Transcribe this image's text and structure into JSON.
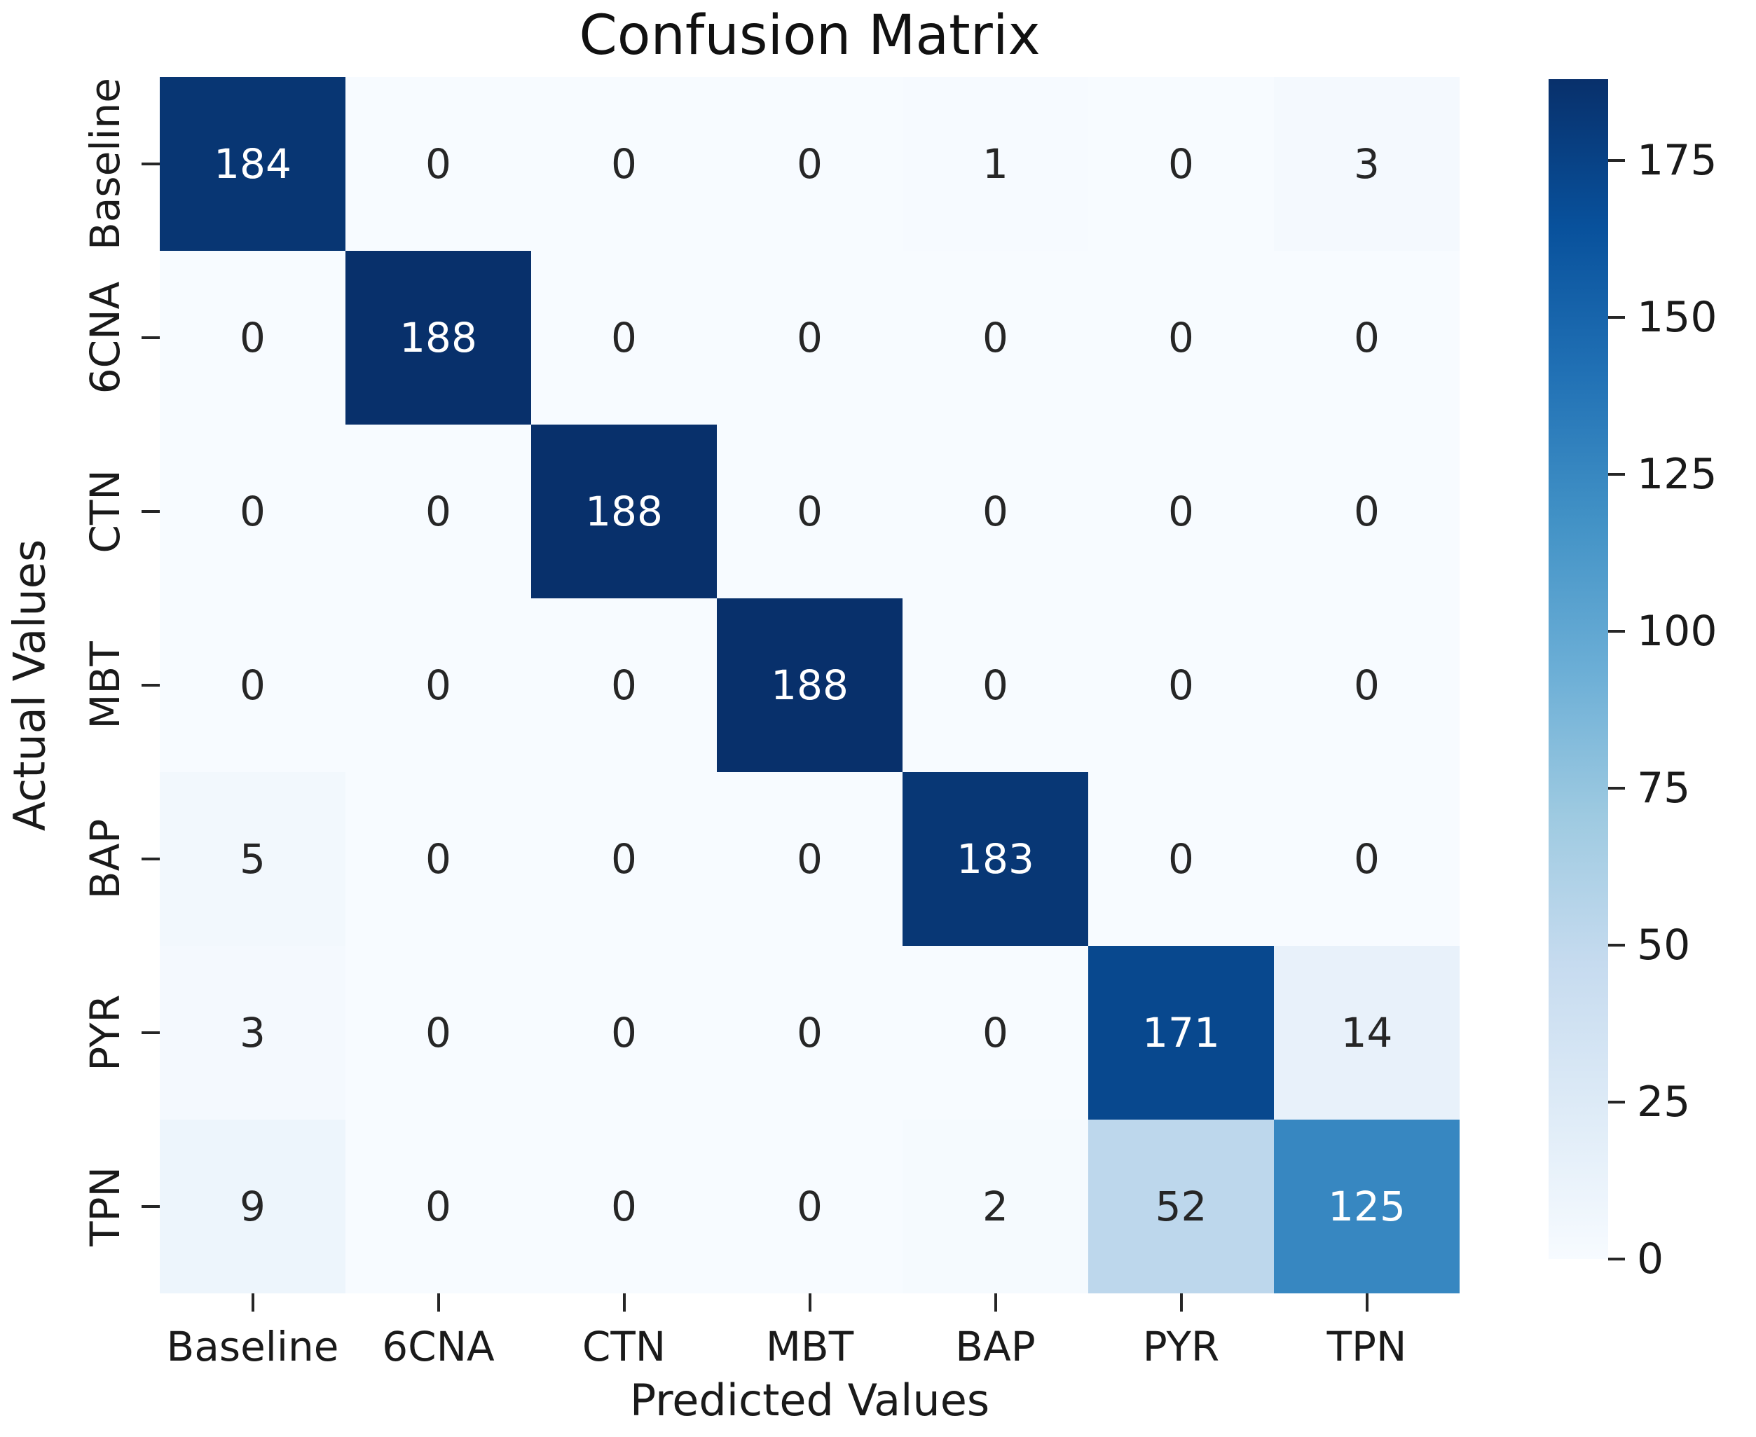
{
  "chart_data": {
    "type": "heatmap",
    "title": "Confusion Matrix",
    "xlabel": "Predicted Values",
    "ylabel": "Actual Values",
    "x_categories": [
      "Baseline",
      "6CNA",
      "CTN",
      "MBT",
      "BAP",
      "PYR",
      "TPN"
    ],
    "y_categories": [
      "Baseline",
      "6CNA",
      "CTN",
      "MBT",
      "BAP",
      "PYR",
      "TPN"
    ],
    "matrix": [
      [
        184,
        0,
        0,
        0,
        1,
        0,
        3
      ],
      [
        0,
        188,
        0,
        0,
        0,
        0,
        0
      ],
      [
        0,
        0,
        188,
        0,
        0,
        0,
        0
      ],
      [
        0,
        0,
        0,
        188,
        0,
        0,
        0
      ],
      [
        5,
        0,
        0,
        0,
        183,
        0,
        0
      ],
      [
        3,
        0,
        0,
        0,
        0,
        171,
        14
      ],
      [
        9,
        0,
        0,
        0,
        2,
        52,
        125
      ]
    ],
    "vmin": 0,
    "vmax": 188,
    "colorbar_ticks": [
      0,
      25,
      50,
      75,
      100,
      125,
      150,
      175
    ],
    "legend_position": "right",
    "grid": false,
    "colormap": {
      "name": "Blues",
      "anchors": [
        "#f7fbff",
        "#deebf7",
        "#c6dbef",
        "#9ecae1",
        "#6baed6",
        "#4292c6",
        "#2171b5",
        "#08519c",
        "#08306b"
      ]
    },
    "colors": {
      "annotation_light": "#ffffff",
      "annotation_dark": "#262626",
      "tick": "#262626",
      "text": "#1a1a1a"
    }
  }
}
